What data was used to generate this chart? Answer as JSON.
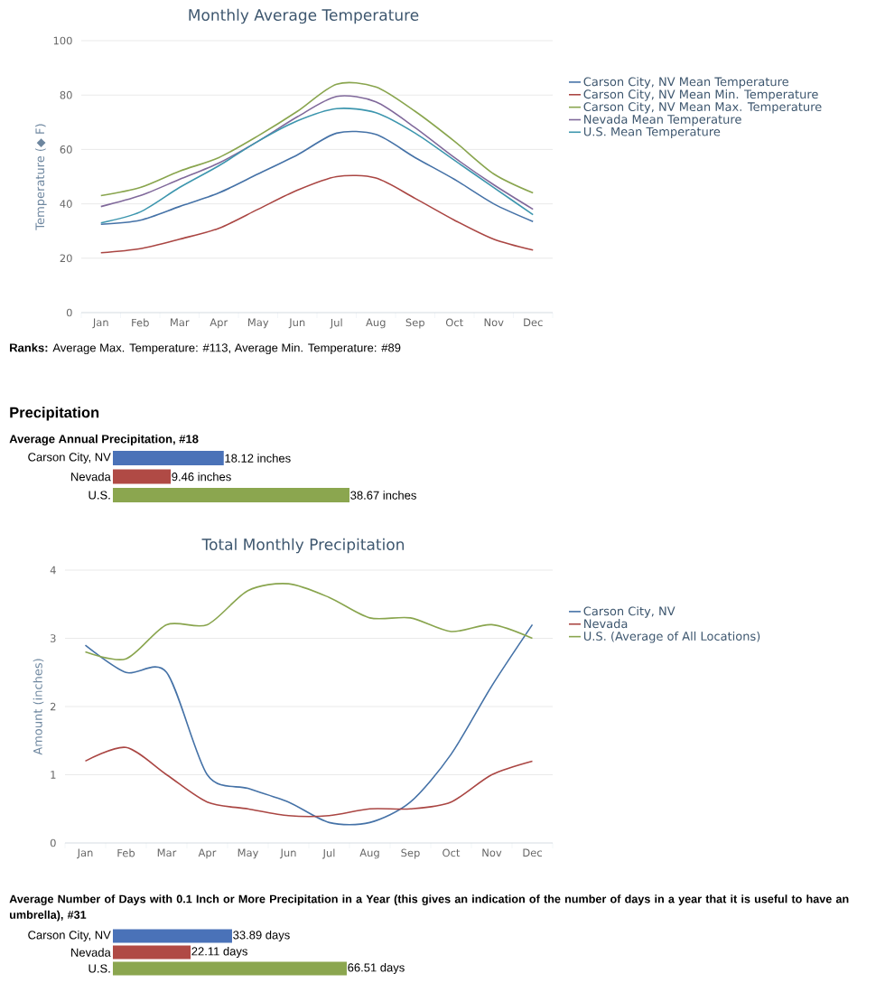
{
  "chart_data": [
    {
      "type": "line",
      "title": "Monthly Average Temperature",
      "ylabel": "Temperature (◆ F)",
      "categories": [
        "Jan",
        "Feb",
        "Mar",
        "Apr",
        "May",
        "Jun",
        "Jul",
        "Aug",
        "Sep",
        "Oct",
        "Nov",
        "Dec"
      ],
      "ylim": [
        0,
        100
      ],
      "yticks": [
        0,
        20,
        40,
        60,
        80,
        100
      ],
      "grid": "y",
      "legend": "right",
      "series": [
        {
          "name": "Carson City, NV Mean Temperature",
          "color": "#4572a7",
          "values": [
            32.5,
            34,
            39,
            44,
            51,
            58,
            66,
            65.5,
            57,
            49,
            40,
            33.5
          ]
        },
        {
          "name": "Carson City, NV Mean Min. Temperature",
          "color": "#aa4643",
          "values": [
            22,
            23.5,
            27,
            31,
            38,
            45,
            50,
            49.5,
            42,
            34,
            27,
            23
          ]
        },
        {
          "name": "Carson City, NV Mean Max. Temperature",
          "color": "#89a54e",
          "values": [
            43,
            46,
            52,
            57,
            65,
            74,
            84,
            83,
            74,
            63,
            51,
            44
          ]
        },
        {
          "name": "Nevada Mean Temperature",
          "color": "#80699b",
          "values": [
            39,
            43,
            49,
            55,
            63,
            72,
            79.5,
            77.5,
            68,
            57,
            47,
            38
          ]
        },
        {
          "name": "U.S. Mean Temperature",
          "color": "#3d96ae",
          "values": [
            33,
            37,
            46,
            54,
            63,
            70.5,
            75,
            73.5,
            66,
            56,
            46,
            36
          ]
        }
      ],
      "annotations": [
        "**Ranks:** Average Max. Temperature: #113, Average Min. Temperature: #89"
      ]
    },
    {
      "type": "bar",
      "orientation": "horizontal",
      "title": "Precipitation",
      "subtitle": "Average Annual Precipitation, #18",
      "categories": [
        "Carson City, NV",
        "Nevada",
        "U.S."
      ],
      "values": [
        18.12,
        9.46,
        38.67
      ],
      "colors": [
        "#4a72b8",
        "#b04a45",
        "#8ba64f"
      ],
      "value_labels": [
        "18.12 inches",
        "9.46 inches",
        "38.67 inches"
      ]
    },
    {
      "type": "line",
      "title": "Total Monthly Precipitation",
      "ylabel": "Amount (inches)",
      "categories": [
        "Jan",
        "Feb",
        "Mar",
        "Apr",
        "May",
        "Jun",
        "Jul",
        "Aug",
        "Sep",
        "Oct",
        "Nov",
        "Dec"
      ],
      "ylim": [
        0,
        4
      ],
      "yticks": [
        0,
        1,
        2,
        3,
        4
      ],
      "grid": "y",
      "legend": "right",
      "series": [
        {
          "name": "Carson City, NV",
          "color": "#4572a7",
          "values": [
            2.9,
            2.5,
            2.5,
            1.0,
            0.8,
            0.6,
            0.3,
            0.3,
            0.6,
            1.3,
            2.3,
            3.2
          ]
        },
        {
          "name": "Nevada",
          "color": "#aa4643",
          "values": [
            1.2,
            1.4,
            1.0,
            0.6,
            0.5,
            0.4,
            0.4,
            0.5,
            0.5,
            0.6,
            1.0,
            1.2
          ]
        },
        {
          "name": "U.S. (Average of All Locations)",
          "color": "#89a54e",
          "values": [
            2.8,
            2.7,
            3.2,
            3.2,
            3.7,
            3.8,
            3.6,
            3.3,
            3.3,
            3.1,
            3.2,
            3.0
          ]
        }
      ]
    },
    {
      "type": "bar",
      "orientation": "horizontal",
      "title": "Average Number of Days with 0.1 Inch or More Precipitation in a Year (this gives an indication of the number of days in a year that it is useful to have an umbrella), #31",
      "categories": [
        "Carson City, NV",
        "Nevada",
        "U.S."
      ],
      "values": [
        33.89,
        22.11,
        66.51
      ],
      "colors": [
        "#4a72b8",
        "#b04a45",
        "#8ba64f"
      ],
      "value_labels": [
        "33.89 days",
        "22.11 days",
        "66.51 days"
      ]
    }
  ]
}
